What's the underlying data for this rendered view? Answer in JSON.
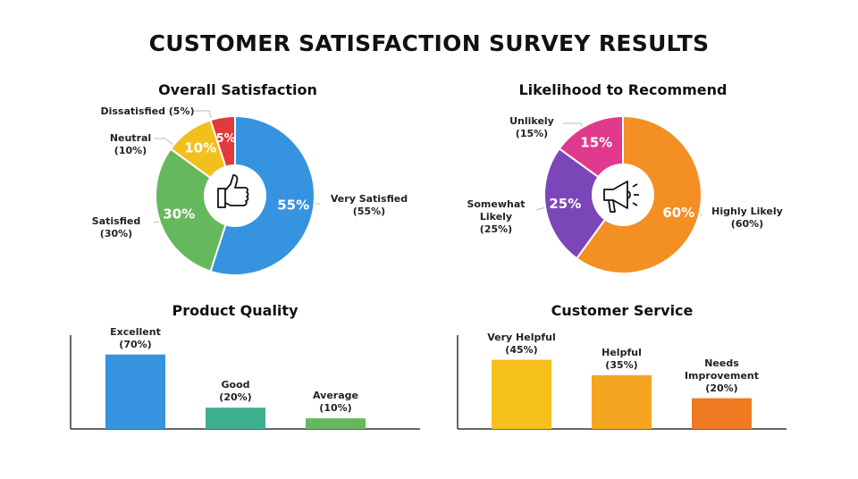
{
  "title": "CUSTOMER SATISFACTION SURVEY RESULTS",
  "chart_data": [
    {
      "type": "pie",
      "title": "Overall Satisfaction",
      "center_icon": "thumbs-up-icon",
      "slices": [
        {
          "label": "Very Satisfied",
          "value": 55,
          "pct_text": "55%",
          "legend": "Very Satisfied\n(55%)",
          "color": "#3593e0"
        },
        {
          "label": "Satisfied",
          "value": 30,
          "pct_text": "30%",
          "legend": "Satisfied\n(30%)",
          "color": "#66b85c"
        },
        {
          "label": "Neutral",
          "value": 10,
          "pct_text": "10%",
          "legend": "Neutral\n(10%)",
          "color": "#f2c01d"
        },
        {
          "label": "Dissatisfied",
          "value": 5,
          "pct_text": "5%",
          "legend": "Dissatisfied (5%)",
          "color": "#e03a3a"
        }
      ]
    },
    {
      "type": "pie",
      "title": "Likelihood to Recommend",
      "center_icon": "megaphone-icon",
      "slices": [
        {
          "label": "Highly Likely",
          "value": 60,
          "pct_text": "60%",
          "legend": "Highly Likely\n(60%)",
          "color": "#f38f23"
        },
        {
          "label": "Somewhat Likely",
          "value": 25,
          "pct_text": "25%",
          "legend": "Somewhat\nLikely\n(25%)",
          "color": "#7b47b8"
        },
        {
          "label": "Unlikely",
          "value": 15,
          "pct_text": "15%",
          "legend": "Unlikely\n(15%)",
          "color": "#e03a8e"
        }
      ]
    },
    {
      "type": "bar",
      "title": "Product Quality",
      "ylim": [
        0,
        80
      ],
      "bars": [
        {
          "label": "Excellent\n(70%)",
          "value": 70,
          "color": "#3593e0"
        },
        {
          "label": "Good\n(20%)",
          "value": 20,
          "color": "#3dae8e"
        },
        {
          "label": "Average\n(10%)",
          "value": 10,
          "color": "#66b85c"
        }
      ]
    },
    {
      "type": "bar",
      "title": "Customer Service",
      "ylim": [
        0,
        55
      ],
      "bars": [
        {
          "label": "Very Helpful\n(45%)",
          "value": 45,
          "color": "#f5c01c"
        },
        {
          "label": "Helpful\n(35%)",
          "value": 35,
          "color": "#f4a51f"
        },
        {
          "label": "Needs\nImprovement\n(20%)",
          "value": 20,
          "color": "#f07a22"
        }
      ]
    }
  ]
}
